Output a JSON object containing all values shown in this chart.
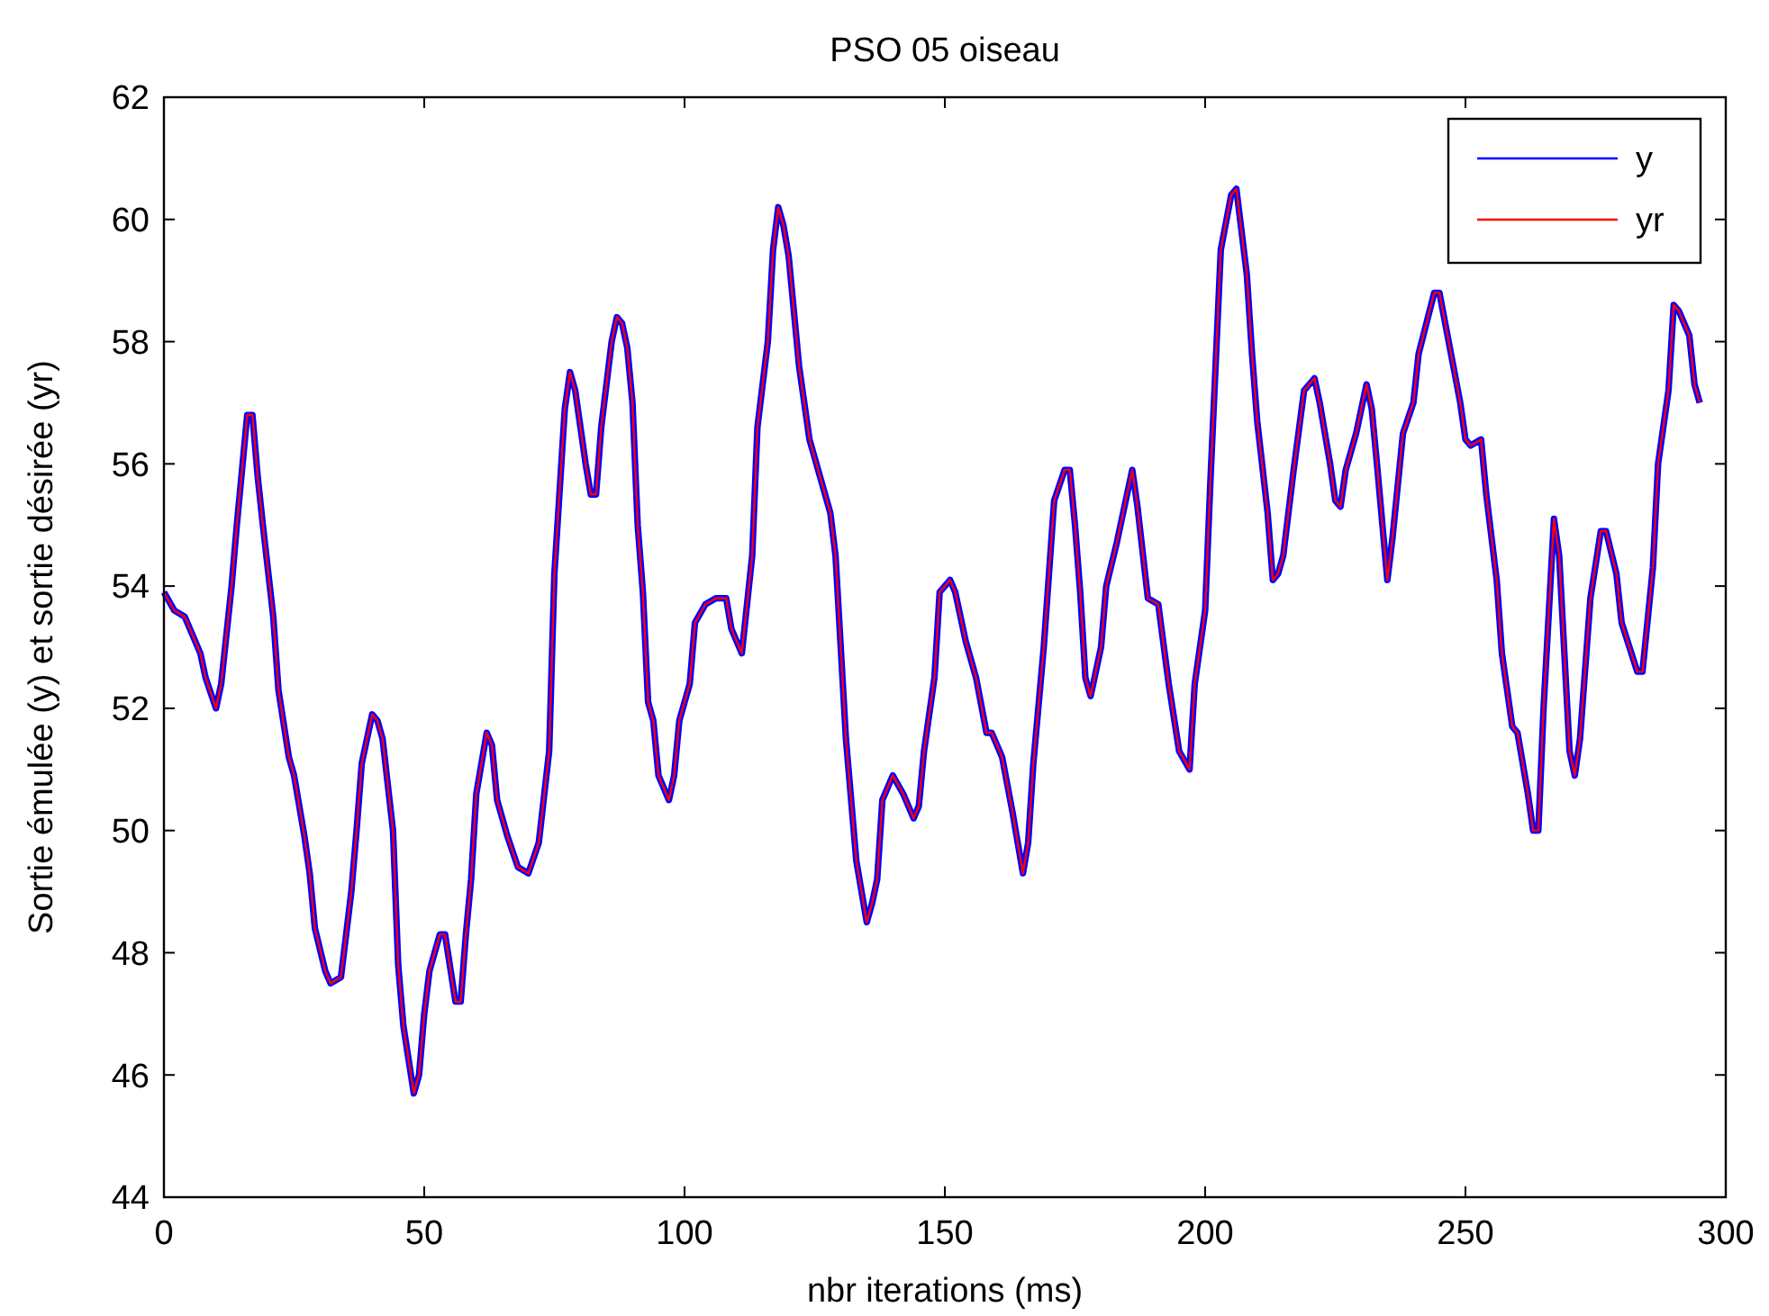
{
  "chart_data": {
    "type": "line",
    "title": "PSO 05 oiseau",
    "xlabel": "nbr iterations (ms)",
    "ylabel": "Sortie émulée (y) et sortie désirée (yr)",
    "x": [
      0,
      2,
      4,
      7,
      8,
      10,
      11,
      13,
      14,
      16,
      17,
      18,
      19,
      21,
      22,
      24,
      25,
      27,
      28,
      29,
      31,
      32,
      34,
      36,
      37,
      38,
      40,
      41,
      42,
      44,
      45,
      46,
      48,
      49,
      50,
      51,
      53,
      54,
      56,
      57,
      58,
      59,
      60,
      62,
      63,
      64,
      66,
      68,
      70,
      72,
      74,
      75,
      77,
      78,
      79,
      80,
      81,
      82,
      83,
      84,
      86,
      87,
      88,
      89,
      90,
      91,
      92,
      93,
      94,
      95,
      97,
      98,
      99,
      101,
      102,
      104,
      106,
      108,
      109,
      111,
      113,
      114,
      116,
      117,
      118,
      119,
      120,
      122,
      124,
      126,
      128,
      129,
      130,
      131,
      133,
      135,
      136,
      137,
      138,
      140,
      142,
      144,
      145,
      146,
      148,
      149,
      151,
      152,
      154,
      156,
      158,
      159,
      161,
      163,
      165,
      166,
      167,
      169,
      171,
      173,
      174,
      175,
      176,
      177,
      178,
      180,
      181,
      183,
      186,
      187,
      189,
      191,
      193,
      195,
      197,
      198,
      200,
      201,
      203,
      205,
      206,
      208,
      209,
      210,
      212,
      213,
      214,
      215,
      217,
      219,
      221,
      222,
      224,
      225,
      226,
      227,
      229,
      231,
      232,
      233,
      235,
      236,
      238,
      240,
      241,
      244,
      245,
      247,
      249,
      250,
      251,
      253,
      254,
      256,
      257,
      259,
      260,
      262,
      263,
      264,
      265,
      267,
      268,
      270,
      271,
      272,
      274,
      276,
      277,
      279,
      280,
      283,
      284,
      286,
      287,
      289,
      290,
      291,
      293,
      294,
      295
    ],
    "series": [
      {
        "name": "y",
        "color": "#0000ff",
        "values": [
          53.9,
          53.6,
          53.5,
          52.9,
          52.5,
          52.0,
          52.4,
          54.0,
          55.0,
          56.8,
          56.8,
          55.8,
          55.0,
          53.5,
          52.3,
          51.2,
          50.9,
          49.9,
          49.3,
          48.4,
          47.7,
          47.5,
          47.6,
          49.0,
          50.0,
          51.1,
          51.9,
          51.8,
          51.5,
          50.0,
          47.8,
          46.8,
          45.7,
          46.0,
          47.0,
          47.7,
          48.3,
          48.3,
          47.2,
          47.2,
          48.3,
          49.2,
          50.6,
          51.6,
          51.4,
          50.5,
          49.9,
          49.4,
          49.3,
          49.8,
          51.3,
          54.2,
          56.9,
          57.5,
          57.2,
          56.6,
          56.0,
          55.5,
          55.5,
          56.6,
          58.0,
          58.4,
          58.3,
          57.9,
          57.0,
          55.0,
          53.9,
          52.1,
          51.8,
          50.9,
          50.5,
          50.9,
          51.8,
          52.4,
          53.4,
          53.7,
          53.8,
          53.8,
          53.3,
          52.9,
          54.5,
          56.6,
          58.0,
          59.5,
          60.2,
          59.9,
          59.4,
          57.6,
          56.4,
          55.8,
          55.2,
          54.5,
          53.0,
          51.5,
          49.5,
          48.5,
          48.8,
          49.2,
          50.5,
          50.9,
          50.6,
          50.2,
          50.4,
          51.3,
          52.5,
          53.9,
          54.1,
          53.9,
          53.1,
          52.5,
          51.6,
          51.6,
          51.2,
          50.3,
          49.3,
          49.8,
          51.1,
          53.0,
          55.4,
          55.9,
          55.9,
          55.0,
          53.9,
          52.5,
          52.2,
          53.0,
          54.0,
          54.7,
          55.9,
          55.3,
          53.8,
          53.7,
          52.4,
          51.3,
          51.0,
          52.4,
          53.6,
          55.7,
          59.5,
          60.4,
          60.5,
          59.1,
          57.8,
          56.7,
          55.2,
          54.1,
          54.2,
          54.5,
          55.9,
          57.2,
          57.4,
          57.0,
          56.0,
          55.4,
          55.3,
          55.9,
          56.5,
          57.3,
          56.9,
          56.0,
          54.1,
          54.8,
          56.5,
          57.0,
          57.8,
          58.8,
          58.8,
          57.9,
          57.0,
          56.4,
          56.3,
          56.4,
          55.5,
          54.1,
          52.9,
          51.7,
          51.6,
          50.6,
          50.0,
          50.0,
          52.0,
          55.1,
          54.5,
          51.3,
          50.9,
          51.5,
          53.8,
          54.9,
          54.9,
          54.2,
          53.4,
          52.6,
          52.6,
          54.3,
          56.0,
          57.2,
          58.6,
          58.5,
          58.1,
          57.3,
          57.0
        ]
      },
      {
        "name": "yr",
        "color": "#ff0000",
        "values": [
          53.9,
          53.6,
          53.5,
          52.9,
          52.5,
          52.0,
          52.4,
          54.0,
          55.0,
          56.8,
          56.8,
          55.8,
          55.0,
          53.5,
          52.3,
          51.2,
          50.9,
          49.9,
          49.3,
          48.4,
          47.7,
          47.5,
          47.6,
          49.0,
          50.0,
          51.1,
          51.9,
          51.8,
          51.5,
          50.0,
          47.8,
          46.8,
          45.7,
          46.0,
          47.0,
          47.7,
          48.3,
          48.3,
          47.2,
          47.2,
          48.3,
          49.2,
          50.6,
          51.6,
          51.4,
          50.5,
          49.9,
          49.4,
          49.3,
          49.8,
          51.3,
          54.2,
          56.9,
          57.5,
          57.2,
          56.6,
          56.0,
          55.5,
          55.5,
          56.6,
          58.0,
          58.4,
          58.3,
          57.9,
          57.0,
          55.0,
          53.9,
          52.1,
          51.8,
          50.9,
          50.5,
          50.9,
          51.8,
          52.4,
          53.4,
          53.7,
          53.8,
          53.8,
          53.3,
          52.9,
          54.5,
          56.6,
          58.0,
          59.5,
          60.2,
          59.9,
          59.4,
          57.6,
          56.4,
          55.8,
          55.2,
          54.5,
          53.0,
          51.5,
          49.5,
          48.5,
          48.8,
          49.2,
          50.5,
          50.9,
          50.6,
          50.2,
          50.4,
          51.3,
          52.5,
          53.9,
          54.1,
          53.9,
          53.1,
          52.5,
          51.6,
          51.6,
          51.2,
          50.3,
          49.3,
          49.8,
          51.1,
          53.0,
          55.4,
          55.9,
          55.9,
          55.0,
          53.9,
          52.5,
          52.2,
          53.0,
          54.0,
          54.7,
          55.9,
          55.3,
          53.8,
          53.7,
          52.4,
          51.3,
          51.0,
          52.4,
          53.6,
          55.7,
          59.5,
          60.4,
          60.5,
          59.1,
          57.8,
          56.7,
          55.2,
          54.1,
          54.2,
          54.5,
          55.9,
          57.2,
          57.4,
          57.0,
          56.0,
          55.4,
          55.3,
          55.9,
          56.5,
          57.3,
          56.9,
          56.0,
          54.1,
          54.8,
          56.5,
          57.0,
          57.8,
          58.8,
          58.8,
          57.9,
          57.0,
          56.4,
          56.3,
          56.4,
          55.5,
          54.1,
          52.9,
          51.7,
          51.6,
          50.6,
          50.0,
          50.0,
          52.0,
          55.1,
          54.5,
          51.3,
          50.9,
          51.5,
          53.8,
          54.9,
          54.9,
          54.2,
          53.4,
          52.6,
          52.6,
          54.3,
          56.0,
          57.2,
          58.6,
          58.5,
          58.1,
          57.3,
          57.0
        ]
      }
    ],
    "xlim": [
      0,
      300
    ],
    "xticks": [
      0,
      50,
      100,
      150,
      200,
      250,
      300
    ],
    "ylim": [
      44,
      62
    ],
    "yticks": [
      44,
      46,
      48,
      50,
      52,
      54,
      56,
      58,
      60,
      62
    ],
    "grid": false,
    "legend": "top right",
    "line_style": "solid",
    "marker": "none"
  }
}
